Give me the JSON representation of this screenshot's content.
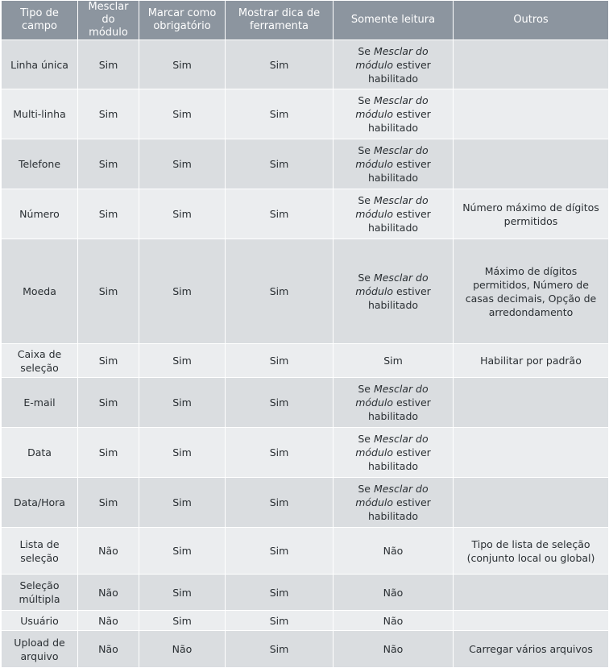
{
  "headers": [
    "Tipo de campo",
    "Mesclar do módulo",
    "Marcar como obrigatório",
    "Mostrar dica de ferramenta",
    "Somente leitura",
    "Outros"
  ],
  "readonly_parts": {
    "prefix": "Se ",
    "emph": "Mesclar do módulo",
    "suffix": " estiver habilitado"
  },
  "rows": [
    {
      "tipo": "Linha única",
      "mesclar": "Sim",
      "obrig": "Sim",
      "dica": "Sim",
      "leitura": null,
      "outros": ""
    },
    {
      "tipo": "Multi-linha",
      "mesclar": "Sim",
      "obrig": "Sim",
      "dica": "Sim",
      "leitura": null,
      "outros": ""
    },
    {
      "tipo": "Telefone",
      "mesclar": "Sim",
      "obrig": "Sim",
      "dica": "Sim",
      "leitura": null,
      "outros": ""
    },
    {
      "tipo": "Número",
      "mesclar": "Sim",
      "obrig": "Sim",
      "dica": "Sim",
      "leitura": null,
      "outros": "Número máximo de dígitos permitidos"
    },
    {
      "tipo": "Moeda",
      "mesclar": "Sim",
      "obrig": "Sim",
      "dica": "Sim",
      "leitura": null,
      "outros": "Máximo de dígitos permitidos, Número de casas decimais, Opção de arredondamento"
    },
    {
      "tipo": "Caixa de seleção",
      "mesclar": "Sim",
      "obrig": "Sim",
      "dica": "Sim",
      "leitura": "Sim",
      "outros": "Habilitar por padrão"
    },
    {
      "tipo": "E-mail",
      "mesclar": "Sim",
      "obrig": "Sim",
      "dica": "Sim",
      "leitura": null,
      "outros": ""
    },
    {
      "tipo": "Data",
      "mesclar": "Sim",
      "obrig": "Sim",
      "dica": "Sim",
      "leitura": null,
      "outros": ""
    },
    {
      "tipo": "Data/Hora",
      "mesclar": "Sim",
      "obrig": "Sim",
      "dica": "Sim",
      "leitura": null,
      "outros": ""
    },
    {
      "tipo": "Lista de seleção",
      "mesclar": "Não",
      "obrig": "Sim",
      "dica": "Sim",
      "leitura": "Não",
      "outros": "Tipo de lista de seleção (conjunto local ou global)"
    },
    {
      "tipo": "Seleção múltipla",
      "mesclar": "Não",
      "obrig": "Sim",
      "dica": "Sim",
      "leitura": "Não",
      "outros": ""
    },
    {
      "tipo": "Usuário",
      "mesclar": "Não",
      "obrig": "Sim",
      "dica": "Sim",
      "leitura": "Não",
      "outros": ""
    },
    {
      "tipo": "Upload de arquivo",
      "mesclar": "Não",
      "obrig": "Não",
      "dica": "Sim",
      "leitura": "Não",
      "outros": "Carregar vários arquivos"
    }
  ]
}
